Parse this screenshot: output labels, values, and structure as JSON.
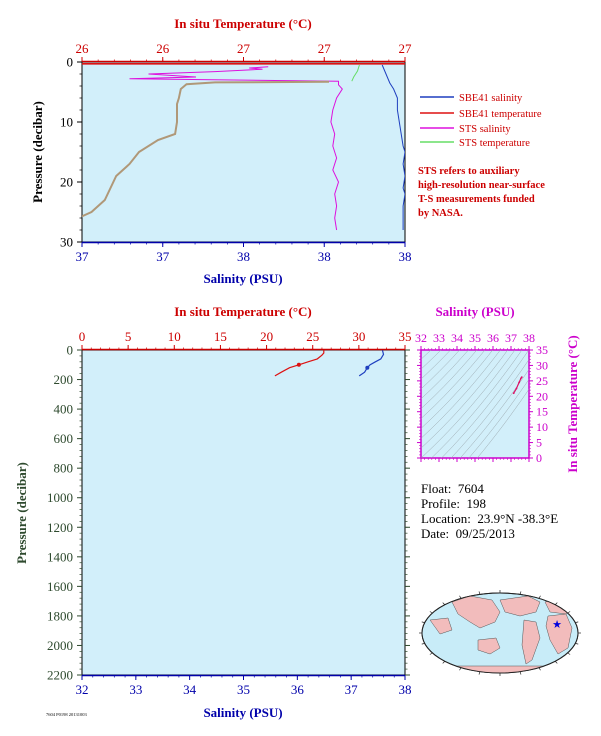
{
  "chart_data": [
    {
      "type": "line",
      "xlabel_bottom": "Salinity (PSU)",
      "xlabel_top": "In situ Temperature (°C)",
      "ylabel": "Pressure (decibar)",
      "bottom_ticks": [
        "37",
        "37",
        "38",
        "38",
        "38"
      ],
      "top_ticks": [
        "26",
        "26",
        "27",
        "27",
        "27"
      ],
      "y_ticks": [
        "0",
        "10",
        "20",
        "30"
      ],
      "ylim": [
        0,
        30
      ],
      "salinity_range": [
        36.5,
        38.2
      ],
      "temperature_range": [
        25.7,
        27.4
      ],
      "legend": [
        {
          "name": "SBE41 salinity",
          "color": "#1f3fbf"
        },
        {
          "name": "SBE41 temperature",
          "color": "#dd1111"
        },
        {
          "name": "STS salinity",
          "color": "#dd11dd"
        },
        {
          "name": "STS temperature",
          "color": "#66dd66"
        }
      ],
      "note": [
        "STS refers to auxiliary",
        "high-resolution near-surface",
        "T-S measurements funded",
        "by NASA."
      ],
      "series": [
        {
          "name": "SBE41 salinity",
          "color": "#1f3fbf",
          "points": [
            [
              38.08,
              0.5
            ],
            [
              38.12,
              3.5
            ],
            [
              38.14,
              4.5
            ],
            [
              38.16,
              6
            ],
            [
              38.16,
              8
            ],
            [
              38.17,
              10
            ],
            [
              38.18,
              12
            ],
            [
              38.19,
              14
            ],
            [
              38.2,
              15
            ],
            [
              38.19,
              17
            ],
            [
              38.2,
              19
            ],
            [
              38.19,
              21
            ],
            [
              38.2,
              22
            ],
            [
              38.19,
              24
            ],
            [
              38.19,
              26
            ],
            [
              38.19,
              28
            ]
          ]
        },
        {
          "name": "SBE41 temperature",
          "color": "#dd1111",
          "points": [
            [
              27.4,
              0.3
            ],
            [
              25.7,
              0.3
            ]
          ]
        },
        {
          "name": "STS salinity",
          "color": "#dd11dd",
          "points": [
            [
              37.48,
              0.8
            ],
            [
              37.38,
              1.0
            ],
            [
              37.45,
              1.2
            ],
            [
              37.2,
              1.6
            ],
            [
              36.85,
              2.0
            ],
            [
              37.1,
              2.5
            ],
            [
              36.75,
              2.8
            ],
            [
              37.3,
              3.0
            ],
            [
              37.85,
              3.2
            ],
            [
              37.85,
              3.8
            ],
            [
              37.87,
              4.5
            ],
            [
              37.84,
              6
            ],
            [
              37.82,
              8
            ],
            [
              37.81,
              10
            ],
            [
              37.83,
              12
            ],
            [
              37.82,
              14
            ],
            [
              37.84,
              16
            ],
            [
              37.82,
              18
            ],
            [
              37.85,
              20
            ],
            [
              37.83,
              22
            ],
            [
              37.84,
              24
            ],
            [
              37.83,
              26
            ],
            [
              37.84,
              28
            ]
          ]
        },
        {
          "name": "STS temperature",
          "color": "#66dd66",
          "points": [
            [
              27.16,
              0.5
            ],
            [
              27.15,
              1.5
            ],
            [
              27.13,
              2.5
            ],
            [
              27.12,
              3.2
            ]
          ]
        },
        {
          "name": "temperature profile",
          "color": "#b09878",
          "points": [
            [
              27.0,
              3.3
            ],
            [
              26.4,
              3.4
            ],
            [
              26.25,
              3.7
            ],
            [
              26.22,
              4.5
            ],
            [
              26.21,
              6
            ],
            [
              26.2,
              7
            ],
            [
              26.2,
              10
            ],
            [
              26.19,
              12
            ],
            [
              26.1,
              13
            ],
            [
              26.0,
              15
            ],
            [
              25.95,
              17
            ],
            [
              25.88,
              19
            ],
            [
              25.85,
              21
            ],
            [
              25.82,
              23
            ],
            [
              25.75,
              25
            ],
            [
              25.68,
              26
            ],
            [
              25.64,
              27
            ],
            [
              25.62,
              28
            ]
          ]
        }
      ]
    },
    {
      "type": "line",
      "xlabel_bottom": "Salinity (PSU)",
      "xlabel_top": "In situ Temperature (°C)",
      "ylabel": "Pressure (decibar)",
      "bottom_ticks": [
        "32",
        "33",
        "34",
        "35",
        "36",
        "37",
        "38"
      ],
      "xlim_salinity": [
        32,
        38
      ],
      "top_ticks": [
        "0",
        "5",
        "10",
        "15",
        "20",
        "25",
        "30",
        "35"
      ],
      "xlim_temperature": [
        0,
        35
      ],
      "y_ticks": [
        "0",
        "200",
        "400",
        "600",
        "800",
        "1000",
        "1200",
        "1400",
        "1600",
        "1800",
        "2000",
        "2200"
      ],
      "ylim": [
        0,
        2200
      ],
      "series": [
        {
          "name": "temperature",
          "color": "#dd1111",
          "points": [
            [
              26.2,
              0
            ],
            [
              26.2,
              20
            ],
            [
              26.0,
              35
            ],
            [
              25.5,
              60
            ],
            [
              24.5,
              80
            ],
            [
              23.5,
              100
            ],
            [
              22.5,
              120
            ],
            [
              21.6,
              150
            ],
            [
              20.9,
              175
            ]
          ]
        },
        {
          "name": "salinity",
          "color": "#1f3fbf",
          "points": [
            [
              37.58,
              0
            ],
            [
              37.6,
              30
            ],
            [
              37.55,
              60
            ],
            [
              37.45,
              80
            ],
            [
              37.35,
              100
            ],
            [
              37.3,
              120
            ],
            [
              37.25,
              150
            ],
            [
              37.15,
              175
            ]
          ]
        }
      ]
    },
    {
      "type": "scatter",
      "xlabel": "Salinity (PSU)",
      "ylabel": "In situ Temperature (°C)",
      "x_ticks": [
        "32",
        "33",
        "34",
        "35",
        "36",
        "37",
        "38"
      ],
      "xlim": [
        32,
        38
      ],
      "y_ticks": [
        "0",
        "5",
        "10",
        "15",
        "20",
        "25",
        "30",
        "35"
      ],
      "ylim": [
        0,
        35
      ],
      "series": [
        {
          "name": "T-S",
          "color": "#dd1166",
          "points": [
            [
              37.15,
              21
            ],
            [
              37.3,
              22.5
            ],
            [
              37.45,
              24.5
            ],
            [
              37.55,
              25.8
            ],
            [
              37.6,
              26.2
            ]
          ]
        }
      ]
    }
  ],
  "float_info": {
    "float_label": "Float:",
    "float_value": "7604",
    "profile_label": "Profile:",
    "profile_value": "198",
    "location_label": "Location:",
    "location_value": "23.9°N  -38.3°E",
    "date_label": "Date:",
    "date_value": "09/25/2013"
  },
  "footer_text": "7604 P0198 20131003",
  "colors": {
    "plot_bg": "#d2effa",
    "temperature_axis": "#cc0000",
    "salinity_axis": "#0000aa",
    "ts_axis": "#cc00cc",
    "pressure_axis_lower": "#2e4a2e",
    "land": "#f2bcbc",
    "ocean": "#c8ecf8"
  }
}
